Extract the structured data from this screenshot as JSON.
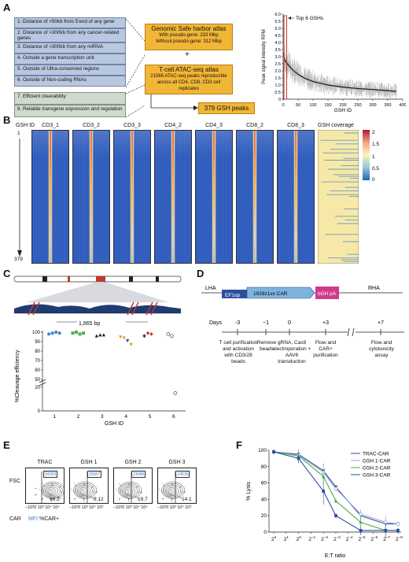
{
  "panels": {
    "a": "A",
    "b": "B",
    "c": "C",
    "d": "D",
    "e": "E",
    "f": "F"
  },
  "panelA": {
    "criteria": [
      "1.    Distance of >50kb from 5'end of any gene",
      "2.    Distance of >300kb from any cancer-related genes",
      "3.    Distance of >300kb from any miRNA",
      "4.    Outside a gene transcription unit",
      "5.    Outside of Ultra-conserved regions",
      "6.    Outside of Non-coding RNAs"
    ],
    "criteria2": [
      "7.    Efficient cleavability",
      "8.    Reliable transgene expression and regulation"
    ],
    "atlas_title": "Genomic Safe harbor atlas",
    "atlas_line1": "With pseudo-gene: 233 Mbp",
    "atlas_line2": "Without pseudo-gene: 312 Mbp",
    "plus": "+",
    "atac_title": "T-cell ATAC-seq atlas",
    "atac_line1": "21566 ATAC-seq peaks reproducible",
    "atac_line2": "across all CD4, CD8, CD3 cell replicates",
    "result": "379 GSH peaks",
    "chart": {
      "type": "line",
      "ylabel": "Peak signal intensity RPM",
      "xlabel": "GSH ID",
      "annotation": "Top 6 GSHs",
      "yticks": [
        "0",
        "0.5",
        "1.0",
        "1.5",
        "2.0",
        "2.5",
        "3.0",
        "3.5",
        "4.0",
        "4.5",
        "5.0",
        "5.5",
        "6.0"
      ],
      "xticks": [
        "0",
        "50",
        "100",
        "150",
        "200",
        "250",
        "300",
        "350",
        "400"
      ]
    }
  },
  "panelB": {
    "row_label": "GSH ID",
    "top_id": "1",
    "bottom_id": "379",
    "samples": [
      "CD3_1",
      "CD3_2",
      "CD3_3",
      "CD4_2",
      "CD4_3",
      "CD8_2",
      "CD8_3"
    ],
    "coverage_label": "GSH coverage",
    "colorbar_ticks": [
      "2",
      "1.5",
      "1",
      "0.5",
      "0"
    ]
  },
  "panelC": {
    "scale": "1,865 bp",
    "ylabel": "%Cleavage efficiency",
    "xlabel": "GSH ID",
    "yticks": [
      "100",
      "90",
      "80",
      "70",
      "60",
      "50",
      "20",
      "0"
    ],
    "xticks": [
      "1",
      "2",
      "3",
      "4",
      "5",
      "6"
    ]
  },
  "panelD": {
    "lha": "LHA",
    "promoter": "EF1αp",
    "car": "1928z1xx CAR",
    "polya": "bGH pA",
    "rha": "RHA",
    "days_label": "Days",
    "days": [
      "-3",
      "−1",
      "0",
      "+3",
      "+7"
    ],
    "steps": [
      "T cell purification and activation with CD3/28 beads",
      "Remove beads",
      "gRNA, Cas9 electroporation + AAV6 transduction",
      "Flow and CAR+ purification",
      "Flow and cytotoxicity assay"
    ]
  },
  "panelE": {
    "samples": [
      {
        "name": "TRAC",
        "mfi": "5093",
        "pct": "69.3"
      },
      {
        "name": "GSH 1",
        "mfi": "3597",
        "pct": "8.12"
      },
      {
        "name": "GSH 2",
        "mfi": "2946",
        "pct": "19.7"
      },
      {
        "name": "GSH 3",
        "mfi": "2405",
        "pct": "14.1"
      }
    ],
    "ylabel": "FSC",
    "xlabel": "CAR",
    "legend_mfi": "MFI",
    "legend_pct": "%CAR+",
    "xticks": "−10³0 10³ 10⁴ 10⁵"
  },
  "panelF": {
    "ylabel": "% Lysis",
    "xlabel": "E:T ratio",
    "legend": [
      "TRAC-CAR",
      "GSH 1-CAR",
      "GSH 2-CAR",
      "GSH 3-CAR"
    ],
    "colors": {
      "trac": "#5a3e8e",
      "gsh1": "#7fb3dd",
      "gsh2": "#4caf50",
      "gsh3": "#2e4f9e",
      "accent": "#f2b636",
      "red": "#c0392b"
    }
  },
  "chart_data": [
    {
      "type": "line",
      "title": "",
      "xlabel": "GSH ID",
      "ylabel": "Peak signal intensity RPM",
      "xlim": [
        0,
        400
      ],
      "ylim": [
        0,
        6.0
      ],
      "x": [
        1,
        2,
        3,
        4,
        5,
        6,
        10,
        20,
        30,
        50,
        75,
        100,
        150,
        200,
        250,
        300,
        350,
        379
      ],
      "series": [
        {
          "name": "",
          "values": [
            3.3,
            3.0,
            2.9,
            2.85,
            2.8,
            2.75,
            2.6,
            2.35,
            2.1,
            1.75,
            1.45,
            1.25,
            1.0,
            0.85,
            0.75,
            0.68,
            0.6,
            0.55
          ]
        }
      ]
    },
    {
      "type": "line",
      "title": "",
      "xlabel": "E:T ratio",
      "ylabel": "% Lysis",
      "categories": [
        "2^2",
        "2^1",
        "2^0",
        "2^-1",
        "2^-2",
        "2^-3",
        "2^-4",
        "2^-5",
        "2^-6",
        "2^-7",
        "2^-8"
      ],
      "ylim": [
        0,
        100
      ],
      "series": [
        {
          "name": "TRAC-CAR",
          "values": [
            98,
            null,
            95,
            null,
            75,
            55,
            null,
            20,
            null,
            10,
            10
          ]
        },
        {
          "name": "GSH 1-CAR",
          "values": [
            98,
            null,
            94,
            null,
            73,
            53,
            null,
            22,
            null,
            12,
            10
          ]
        },
        {
          "name": "GSH 2-CAR",
          "values": [
            98,
            null,
            93,
            null,
            68,
            38,
            null,
            12,
            null,
            2,
            2
          ]
        },
        {
          "name": "GSH 3-CAR",
          "values": [
            98,
            null,
            90,
            null,
            50,
            20,
            null,
            2,
            null,
            2,
            2
          ]
        }
      ]
    },
    {
      "type": "scatter",
      "title": "",
      "xlabel": "GSH ID",
      "ylabel": "%Cleavage efficiency",
      "categories": [
        "1",
        "2",
        "3",
        "4",
        "5",
        "6"
      ],
      "series": [
        {
          "name": "",
          "values": [
            [
              98,
              99,
              100,
              99
            ],
            [
              99,
              100,
              98,
              99
            ],
            [
              96,
              97,
              97
            ],
            [
              95,
              94,
              91,
              87
            ],
            [
              96,
              99,
              98
            ],
            [
              98,
              96,
              15
            ]
          ]
        }
      ]
    }
  ]
}
